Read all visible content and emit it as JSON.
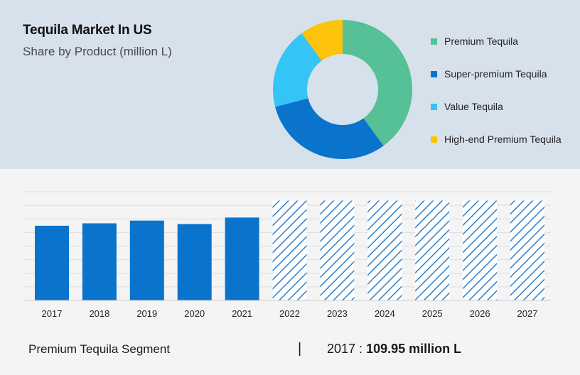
{
  "header": {
    "title": "Tequila Market In US",
    "subtitle": "Share by Product (million L)"
  },
  "footer": {
    "segment": "Premium Tequila Segment",
    "separator": "|",
    "year": "2017 :",
    "value": "109.95 million L"
  },
  "colors": {
    "top_panel": "#d7e1ec",
    "bottom_panel": "#f4f4f4",
    "bar": "#0a74cc",
    "forecast_hatch": "#2f7ec8",
    "grid": "#dddddd"
  },
  "chart_data": [
    {
      "type": "pie",
      "donut": true,
      "legend_position": "right",
      "series": [
        {
          "name": "Premium Tequila",
          "value": 40,
          "color": "#56c096"
        },
        {
          "name": "Super-premium Tequila",
          "value": 31,
          "color": "#0a74cc"
        },
        {
          "name": "Value Tequila",
          "value": 19,
          "color": "#35c4f6"
        },
        {
          "name": "High-end Premium Tequila",
          "value": 10,
          "color": "#fcc30a"
        }
      ]
    },
    {
      "type": "bar",
      "categories": [
        "2017",
        "2018",
        "2019",
        "2020",
        "2021",
        "2022",
        "2023",
        "2024",
        "2025",
        "2026",
        "2027"
      ],
      "values": [
        109.95,
        113.5,
        117.5,
        112.5,
        122,
        147,
        147,
        147,
        147,
        147,
        147
      ],
      "forecast": [
        false,
        false,
        false,
        false,
        false,
        true,
        true,
        true,
        true,
        true,
        true
      ],
      "ylim": [
        0,
        160
      ],
      "grid": true
    }
  ]
}
